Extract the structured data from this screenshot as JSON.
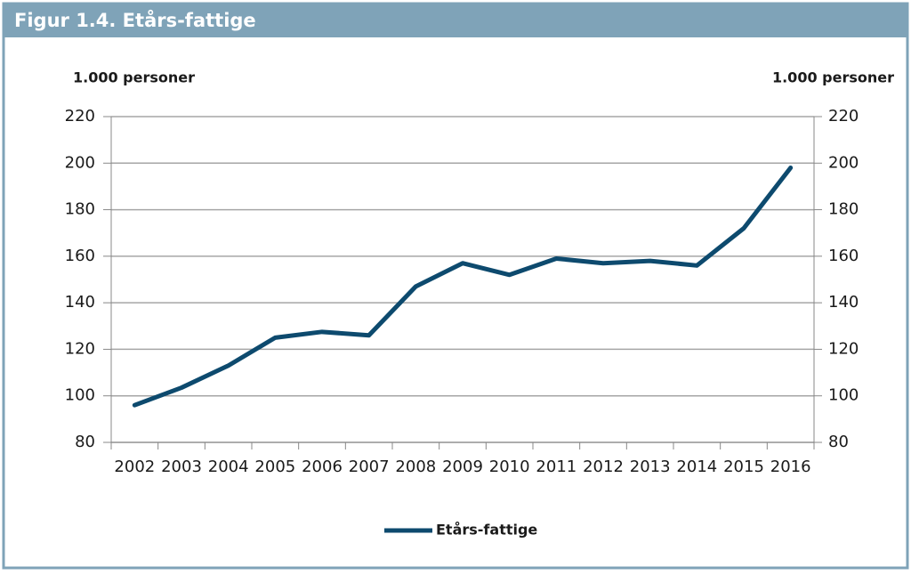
{
  "chart_data": {
    "type": "line",
    "title": "Figur 1.4. Etårs-fattige",
    "ylabel": "1.000 personer",
    "y2label": "1.000 personer",
    "categories": [
      "2002",
      "2003",
      "2004",
      "2005",
      "2006",
      "2007",
      "2008",
      "2009",
      "2010",
      "2011",
      "2012",
      "2013",
      "2014",
      "2015",
      "2016"
    ],
    "series": [
      {
        "name": "Etårs-fattige",
        "color": "#0d4a6e",
        "values": [
          96,
          103.5,
          113,
          125,
          127.5,
          126,
          147,
          157,
          152,
          159,
          157,
          158,
          156,
          172,
          198
        ]
      }
    ],
    "ylim": [
      80,
      220
    ],
    "yticks": [
      80,
      100,
      120,
      140,
      160,
      180,
      200,
      220
    ],
    "y2lim": [
      80,
      220
    ],
    "y2ticks": [
      80,
      100,
      120,
      140,
      160,
      180,
      200,
      220
    ],
    "grid": true,
    "legend": "bottom"
  }
}
